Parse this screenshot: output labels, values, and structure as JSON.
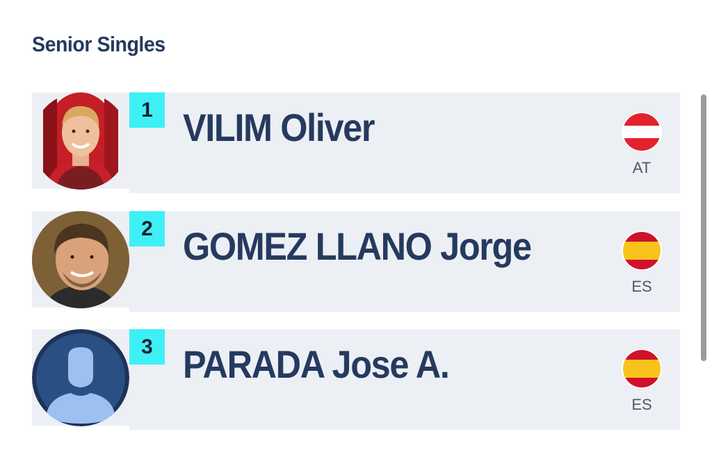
{
  "section": {
    "title": "Senior Singles"
  },
  "players": [
    {
      "rank": "1",
      "name": "VILIM Oliver",
      "country": "AT",
      "flag": "austria-flag",
      "avatar": "player-photo"
    },
    {
      "rank": "2",
      "name": "GOMEZ LLANO Jorge",
      "country": "ES",
      "flag": "spain-flag",
      "avatar": "player-photo"
    },
    {
      "rank": "3",
      "name": "PARADA Jose A.",
      "country": "ES",
      "flag": "spain-flag",
      "avatar": "default-avatar-icon"
    }
  ],
  "colors": {
    "title": "#253a5e",
    "row_background": "#eceff4",
    "rank_badge": "#3ef0f5",
    "austria_red": "#e3222d",
    "spain_red": "#d0112b",
    "spain_yellow": "#f8c41b"
  }
}
